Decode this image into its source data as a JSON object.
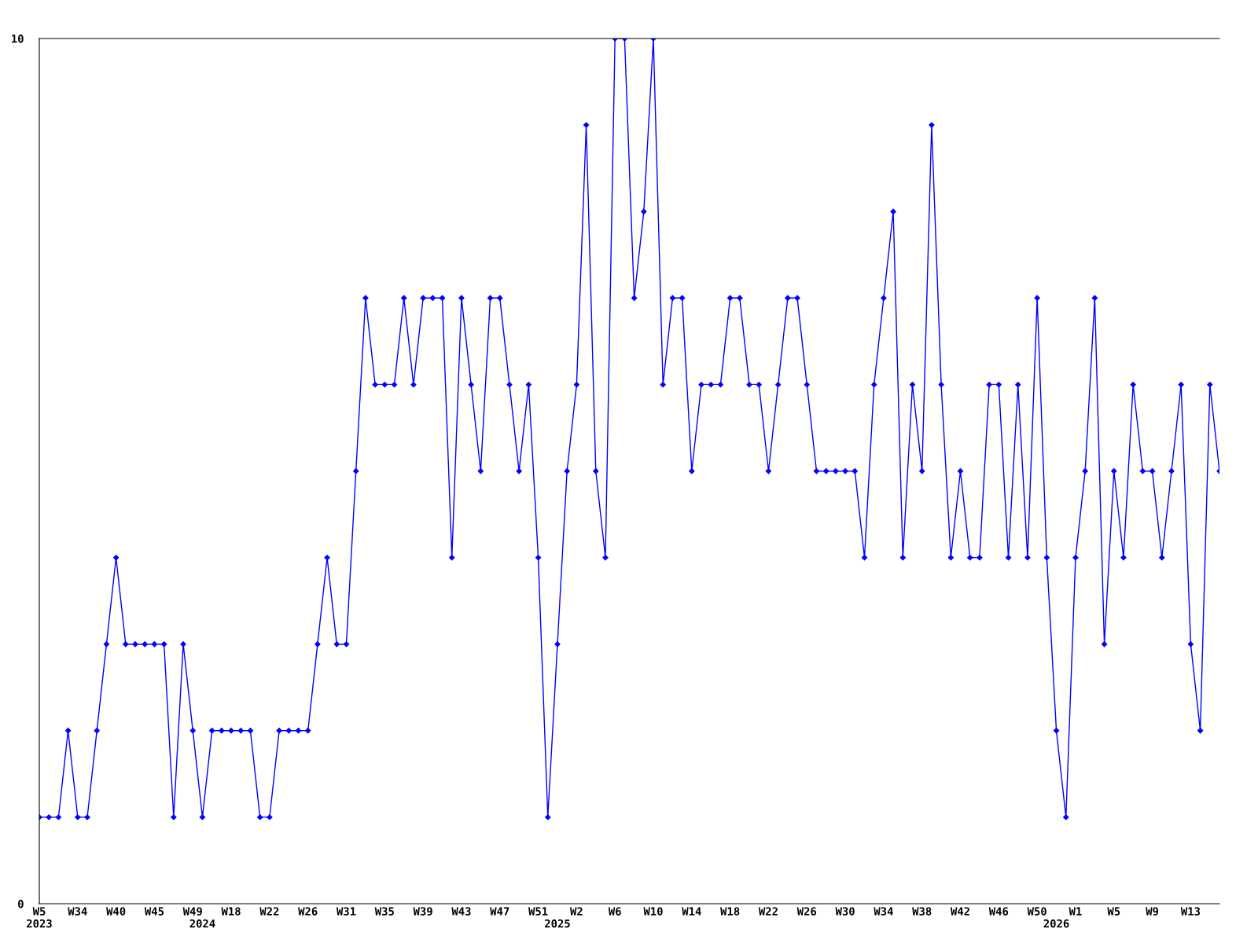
{
  "chart_data": {
    "type": "line",
    "categories": [
      "W5\n2023",
      null,
      null,
      null,
      "W34",
      null,
      null,
      null,
      "W40",
      null,
      null,
      null,
      "W45",
      null,
      null,
      null,
      "W49",
      "\n2024",
      null,
      null,
      "W18",
      null,
      null,
      null,
      "W22",
      null,
      null,
      null,
      "W26",
      null,
      null,
      null,
      "W31",
      null,
      null,
      null,
      "W35",
      null,
      null,
      null,
      "W39",
      null,
      null,
      null,
      "W43",
      null,
      null,
      null,
      "W47",
      null,
      null,
      null,
      "W51",
      null,
      "\n2025",
      null,
      "W2",
      null,
      null,
      null,
      "W6",
      null,
      null,
      null,
      "W10",
      null,
      null,
      null,
      "W14",
      null,
      null,
      null,
      "W18",
      null,
      null,
      null,
      "W22",
      null,
      null,
      null,
      "W26",
      null,
      null,
      null,
      "W30",
      null,
      null,
      null,
      "W34",
      null,
      null,
      null,
      "W38",
      null,
      null,
      null,
      "W42",
      null,
      null,
      null,
      "W46",
      null,
      null,
      null,
      "W50",
      null,
      "\n2026",
      null,
      "W1",
      null,
      null,
      null,
      "W5",
      null,
      null,
      null,
      "W9",
      null,
      null,
      null,
      "W13",
      null,
      null,
      null
    ],
    "series": [
      {
        "color": "#0000ff",
        "values": [
          1,
          1,
          1,
          2,
          1,
          1,
          2,
          3,
          4,
          3,
          3,
          3,
          3,
          3,
          1,
          3,
          2,
          1,
          2,
          2,
          2,
          2,
          2,
          1,
          1,
          2,
          2,
          2,
          2,
          3,
          4,
          3,
          3,
          5,
          7,
          6,
          6,
          6,
          7,
          6,
          7,
          7,
          7,
          4,
          7,
          6,
          5,
          7,
          7,
          6,
          5,
          6,
          4,
          1,
          3,
          5,
          6,
          9,
          5,
          4,
          10,
          10,
          7,
          8,
          10,
          6,
          7,
          7,
          5,
          6,
          6,
          6,
          7,
          7,
          6,
          6,
          5,
          6,
          7,
          7,
          6,
          5,
          5,
          5,
          5,
          5,
          4,
          6,
          7,
          8,
          4,
          6,
          5,
          9,
          6,
          4,
          5,
          4,
          4,
          6,
          6,
          4,
          6,
          4,
          7,
          4,
          2,
          1,
          4,
          5,
          7,
          3,
          5,
          4,
          6,
          5,
          5,
          4,
          5,
          6,
          3,
          2,
          6,
          5
        ]
      }
    ],
    "ylim": [
      0,
      10
    ],
    "yticks": [
      0,
      10
    ],
    "grid": false,
    "legend": false,
    "marker": "diamond",
    "line_style": "solid"
  }
}
